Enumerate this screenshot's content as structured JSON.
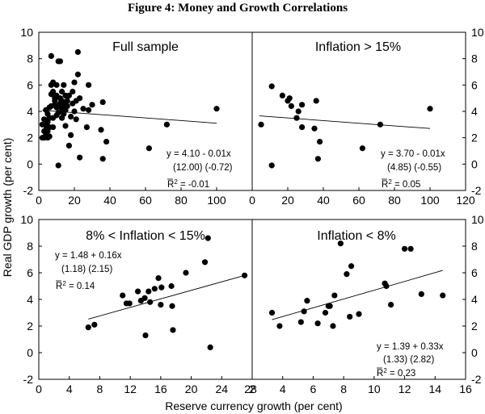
{
  "figure_title": "Figure 4: Money and Growth Correlations",
  "ylabel": "Real GDP growth (per cent)",
  "xlabel": "Reserve currency growth (per cent)",
  "chart_data": [
    {
      "type": "scatter",
      "title": "Full sample",
      "xlim": [
        0,
        120
      ],
      "ylim": [
        -2,
        10
      ],
      "xticks": [
        "0",
        "20",
        "40",
        "60",
        "80",
        "100"
      ],
      "yticks": [
        "-2",
        "0",
        "2",
        "4",
        "6",
        "8",
        "10"
      ],
      "eq_line1": "y = 4.10 - 0.01x",
      "eq_line2": "(12.00) (-0.72)",
      "r2_value": "= -0.01",
      "fit": {
        "intercept": 4.1,
        "slope": -0.01,
        "x_range": [
          2,
          100
        ]
      },
      "x": [
        2,
        2,
        3,
        3,
        3,
        4,
        4,
        4,
        4,
        5,
        5,
        5,
        5,
        6,
        6,
        6,
        6,
        7,
        7,
        7,
        7,
        8,
        8,
        8,
        8,
        9,
        9,
        9,
        10,
        10,
        10,
        10,
        11,
        11,
        11,
        11,
        12,
        12,
        12,
        13,
        13,
        13,
        13,
        14,
        14,
        14,
        15,
        15,
        15,
        16,
        16,
        17,
        17,
        18,
        18,
        19,
        19,
        20,
        20,
        21,
        21,
        22,
        22,
        23,
        23,
        25,
        27,
        28,
        28,
        30,
        35,
        36,
        36,
        38,
        62,
        72,
        100
      ],
      "y": [
        3,
        2,
        2.5,
        3.4,
        2,
        3,
        4.1,
        2.9,
        2.2,
        3.8,
        3.2,
        2,
        2.5,
        4.3,
        3.5,
        2.1,
        2.8,
        8.2,
        6,
        4.4,
        5.3,
        3.5,
        2.8,
        6.2,
        5.5,
        4.5,
        4.8,
        5,
        3.7,
        4.3,
        5.2,
        6,
        7.8,
        3.9,
        4.4,
        -0.1,
        5,
        4.6,
        7.8,
        3.5,
        4.8,
        5.5,
        4.2,
        3.8,
        4.5,
        6,
        5.2,
        4.1,
        2.9,
        4.8,
        4.4,
        1.4,
        5.2,
        3.6,
        2.2,
        5.5,
        4.6,
        4,
        6.2,
        3.4,
        4.8,
        8.5,
        6.8,
        5,
        0.5,
        4.2,
        2.8,
        6,
        4.1,
        4.5,
        2.6,
        0.4,
        4.7,
        1.7,
        1.2,
        3.0,
        4.2
      ]
    },
    {
      "type": "scatter",
      "title": "Inflation > 15%",
      "xlim": [
        0,
        120
      ],
      "ylim": [
        -2,
        10
      ],
      "xticks": [
        "0",
        "20",
        "40",
        "60",
        "80",
        "100",
        "120"
      ],
      "yticks": [
        "-2",
        "0",
        "2",
        "4",
        "6",
        "8",
        "10"
      ],
      "eq_line1": "y = 3.70 - 0.01x",
      "eq_line2": "(4.85) (-0.55)",
      "r2_value": "= 0.05",
      "fit": {
        "intercept": 3.7,
        "slope": -0.01,
        "x_range": [
          4,
          100
        ]
      },
      "x": [
        5,
        11,
        11,
        17,
        20,
        21,
        22,
        25,
        26,
        28,
        28,
        35,
        36,
        37,
        38,
        62,
        72,
        100
      ],
      "y": [
        3.0,
        -0.1,
        5.9,
        5.2,
        4.8,
        5.0,
        4.4,
        3.5,
        4.0,
        4.5,
        2.8,
        2.7,
        4.8,
        0.4,
        1.7,
        1.2,
        3.0,
        4.2
      ]
    },
    {
      "type": "scatter",
      "title": "8% < Inflation < 15%",
      "xlim": [
        0,
        28
      ],
      "ylim": [
        -2,
        10
      ],
      "xticks": [
        "0",
        "4",
        "8",
        "12",
        "16",
        "20",
        "24",
        "28"
      ],
      "yticks": [
        "-2",
        "0",
        "2",
        "4",
        "6",
        "8",
        "10"
      ],
      "eq_line1": "y = 1.48 + 0.16x",
      "eq_line2": "(1.18)  (2.15)",
      "r2_value": "= 0.14",
      "fit": {
        "intercept": 1.48,
        "slope": 0.16,
        "x_range": [
          6.5,
          27
        ]
      },
      "x": [
        6.5,
        7.3,
        11,
        11.5,
        11.9,
        13,
        13.4,
        13.9,
        14,
        14.4,
        14.6,
        15.2,
        15.7,
        16,
        16.1,
        17.4,
        17.5,
        17.6,
        19.3,
        21.8,
        22.2,
        22.5,
        27
      ],
      "y": [
        1.9,
        2.1,
        4.3,
        3.7,
        3.7,
        4.6,
        3.9,
        4.1,
        1.3,
        4.6,
        3.8,
        4.8,
        5.6,
        3.6,
        4.9,
        5.0,
        3.5,
        1.7,
        6.0,
        6.8,
        8.6,
        0.4,
        5.8
      ]
    },
    {
      "type": "scatter",
      "title": "Inflation < 8%",
      "xlim": [
        2,
        16
      ],
      "ylim": [
        -2,
        10
      ],
      "xticks": [
        "2",
        "4",
        "6",
        "8",
        "10",
        "12",
        "14",
        "16"
      ],
      "yticks": [
        "-2",
        "0",
        "2",
        "4",
        "6",
        "8",
        "10"
      ],
      "eq_line1": "y = 1.39 + 0.33x",
      "eq_line2": "(1.33)   (2.82)",
      "r2_value": "= 0.23",
      "fit": {
        "intercept": 1.39,
        "slope": 0.33,
        "x_range": [
          3.3,
          14.5
        ]
      },
      "x": [
        3.3,
        3.8,
        5.2,
        5.4,
        5.6,
        6.3,
        6.8,
        7.0,
        7.1,
        7.3,
        7.4,
        7.8,
        8.2,
        8.4,
        8.5,
        9.0,
        10.7,
        10.8,
        11.1,
        12,
        12.4,
        13.1,
        14.5
      ],
      "y": [
        3.0,
        2.0,
        2.3,
        3.1,
        3.9,
        2.2,
        3.0,
        3.5,
        3.5,
        2.0,
        4.3,
        8.2,
        5.9,
        2.7,
        6.5,
        2.9,
        5.2,
        5.0,
        3.6,
        7.8,
        7.8,
        4.4,
        4.3
      ]
    }
  ]
}
